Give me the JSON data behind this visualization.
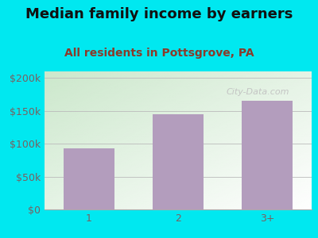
{
  "title": "Median family income by earners",
  "subtitle": "All residents in Pottsgrove, PA",
  "categories": [
    "1",
    "2",
    "3+"
  ],
  "values": [
    93000,
    145000,
    165000
  ],
  "bar_color": "#b39dbd",
  "title_fontsize": 13,
  "subtitle_fontsize": 10,
  "subtitle_color": "#8b3a2a",
  "title_color": "#111111",
  "bg_outer_color": "#00e8f0",
  "ylim": [
    0,
    210000
  ],
  "yticks": [
    0,
    50000,
    100000,
    150000,
    200000
  ],
  "ytick_labels": [
    "$0",
    "$50k",
    "$100k",
    "$150k",
    "$200k"
  ],
  "tick_color": "#7a6060",
  "axis_label_fontsize": 9,
  "watermark": "City-Data.com"
}
